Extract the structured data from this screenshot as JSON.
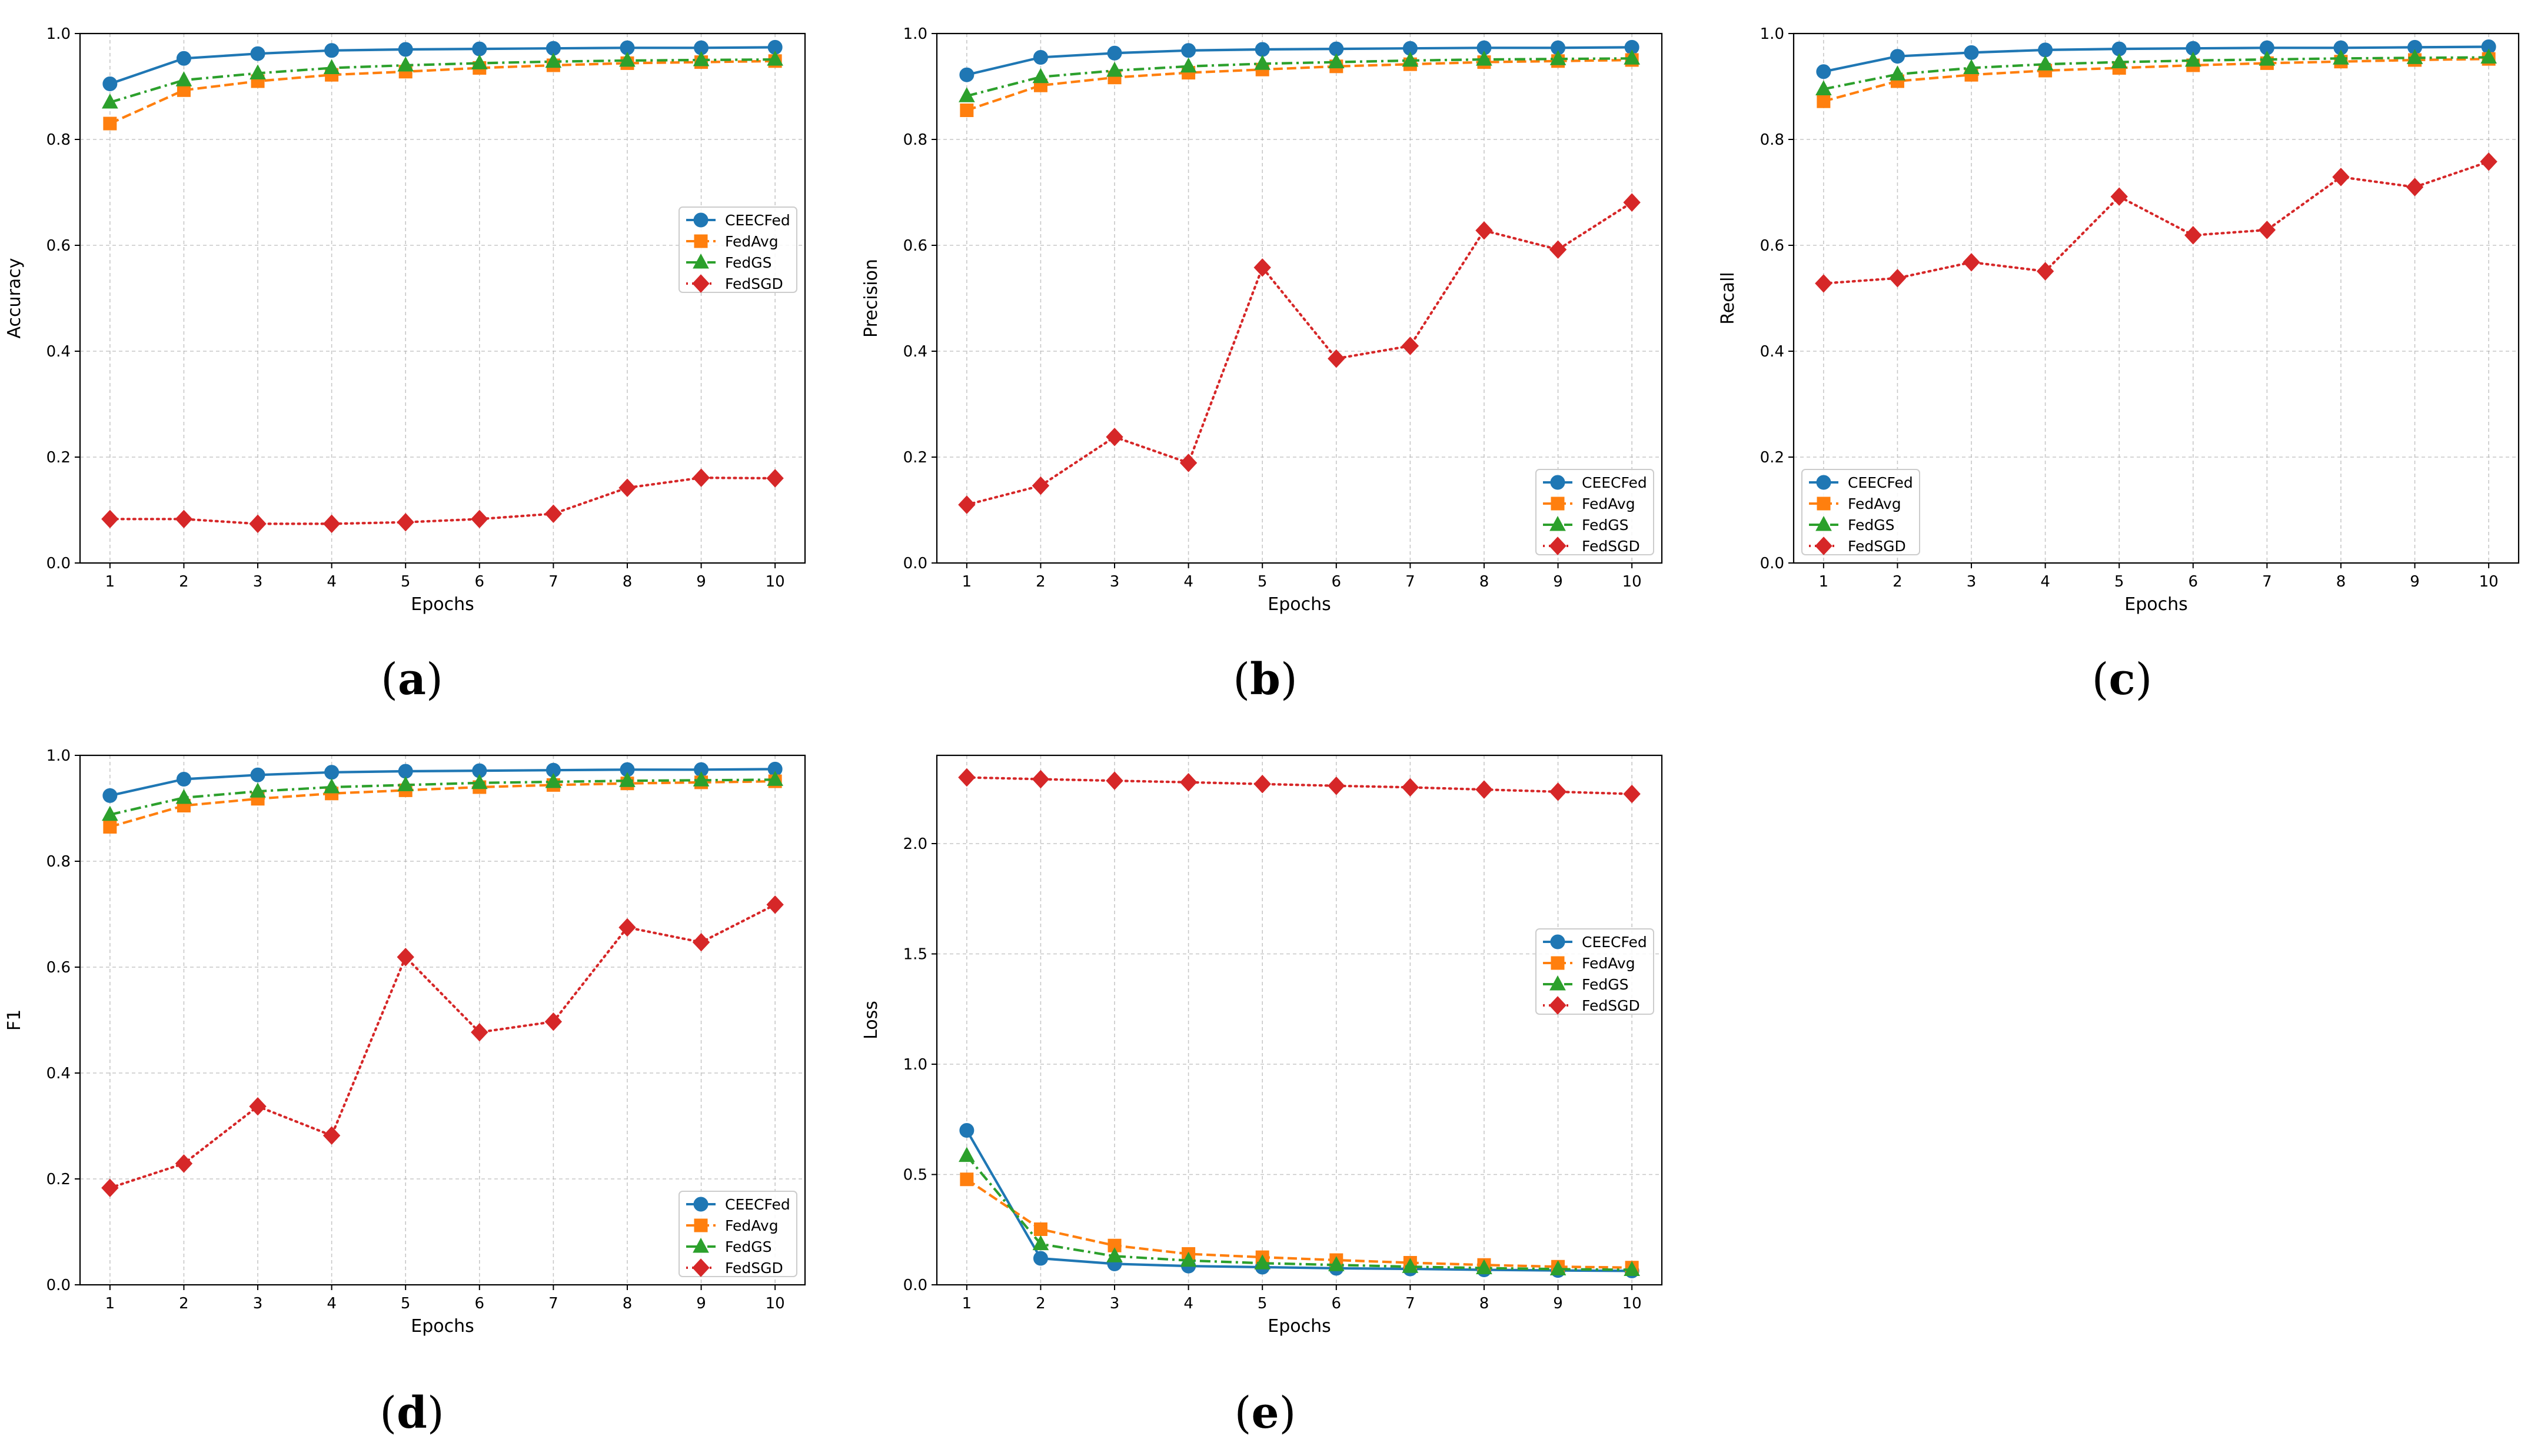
{
  "colors": {
    "CEECFed": "#1f77b4",
    "FedAvg": "#ff7f0e",
    "FedGS": "#2ca02c",
    "FedSGD": "#d62728"
  },
  "chart_data": [
    {
      "panel": "a",
      "caption_prefix": "(",
      "caption_letter": "a",
      "caption_suffix": ")",
      "type": "line",
      "title": "",
      "xlabel": "Epochs",
      "ylabel": "Accuracy",
      "x": [
        1,
        2,
        3,
        4,
        5,
        6,
        7,
        8,
        9,
        10
      ],
      "xticks": [
        "1",
        "2",
        "3",
        "4",
        "5",
        "6",
        "7",
        "8",
        "9",
        "10"
      ],
      "ylim": [
        0,
        1.0
      ],
      "yticks": [
        "0.0",
        "0.2",
        "0.4",
        "0.6",
        "0.8",
        "1.0"
      ],
      "ytick_values": [
        0,
        0.2,
        0.4,
        0.6,
        0.8,
        1.0
      ],
      "grid": true,
      "legend_position": "center-right",
      "series": [
        {
          "name": "CEECFed",
          "marker": "circle",
          "linestyle": "solid",
          "values": [
            0.905,
            0.953,
            0.962,
            0.968,
            0.97,
            0.971,
            0.972,
            0.973,
            0.973,
            0.974
          ]
        },
        {
          "name": "FedAvg",
          "marker": "square",
          "linestyle": "dashed",
          "values": [
            0.83,
            0.893,
            0.91,
            0.922,
            0.928,
            0.935,
            0.94,
            0.944,
            0.946,
            0.948
          ]
        },
        {
          "name": "FedGS",
          "marker": "triangle",
          "linestyle": "dashdot",
          "values": [
            0.87,
            0.912,
            0.925,
            0.935,
            0.94,
            0.944,
            0.947,
            0.949,
            0.95,
            0.951
          ]
        },
        {
          "name": "FedSGD",
          "marker": "diamond",
          "linestyle": "dotted",
          "values": [
            0.083,
            0.083,
            0.074,
            0.074,
            0.077,
            0.083,
            0.093,
            0.142,
            0.161,
            0.16
          ]
        }
      ]
    },
    {
      "panel": "b",
      "caption_prefix": "(",
      "caption_letter": "b",
      "caption_suffix": ")",
      "type": "line",
      "title": "",
      "xlabel": "Epochs",
      "ylabel": "Precision",
      "x": [
        1,
        2,
        3,
        4,
        5,
        6,
        7,
        8,
        9,
        10
      ],
      "xticks": [
        "1",
        "2",
        "3",
        "4",
        "5",
        "6",
        "7",
        "8",
        "9",
        "10"
      ],
      "ylim": [
        0,
        1.0
      ],
      "yticks": [
        "0.0",
        "0.2",
        "0.4",
        "0.6",
        "0.8",
        "1.0"
      ],
      "ytick_values": [
        0,
        0.2,
        0.4,
        0.6,
        0.8,
        1.0
      ],
      "grid": true,
      "legend_position": "lower-right",
      "series": [
        {
          "name": "CEECFed",
          "marker": "circle",
          "linestyle": "solid",
          "values": [
            0.922,
            0.955,
            0.963,
            0.968,
            0.97,
            0.971,
            0.972,
            0.973,
            0.973,
            0.974
          ]
        },
        {
          "name": "FedAvg",
          "marker": "square",
          "linestyle": "dashed",
          "values": [
            0.855,
            0.902,
            0.917,
            0.926,
            0.932,
            0.938,
            0.942,
            0.946,
            0.948,
            0.95
          ]
        },
        {
          "name": "FedGS",
          "marker": "triangle",
          "linestyle": "dashdot",
          "values": [
            0.882,
            0.918,
            0.93,
            0.938,
            0.943,
            0.946,
            0.949,
            0.951,
            0.952,
            0.953
          ]
        },
        {
          "name": "FedSGD",
          "marker": "diamond",
          "linestyle": "dotted",
          "values": [
            0.11,
            0.146,
            0.238,
            0.189,
            0.558,
            0.386,
            0.41,
            0.628,
            0.592,
            0.681
          ]
        }
      ]
    },
    {
      "panel": "c",
      "caption_prefix": "(",
      "caption_letter": "c",
      "caption_suffix": ")",
      "type": "line",
      "title": "",
      "xlabel": "Epochs",
      "ylabel": "Recall",
      "x": [
        1,
        2,
        3,
        4,
        5,
        6,
        7,
        8,
        9,
        10
      ],
      "xticks": [
        "1",
        "2",
        "3",
        "4",
        "5",
        "6",
        "7",
        "8",
        "9",
        "10"
      ],
      "ylim": [
        0,
        1.0
      ],
      "yticks": [
        "0.0",
        "0.2",
        "0.4",
        "0.6",
        "0.8",
        "1.0"
      ],
      "ytick_values": [
        0,
        0.2,
        0.4,
        0.6,
        0.8,
        1.0
      ],
      "grid": true,
      "legend_position": "lower-left",
      "series": [
        {
          "name": "CEECFed",
          "marker": "circle",
          "linestyle": "solid",
          "values": [
            0.928,
            0.957,
            0.964,
            0.969,
            0.971,
            0.972,
            0.973,
            0.973,
            0.974,
            0.975
          ]
        },
        {
          "name": "FedAvg",
          "marker": "square",
          "linestyle": "dashed",
          "values": [
            0.872,
            0.91,
            0.922,
            0.93,
            0.935,
            0.94,
            0.944,
            0.947,
            0.95,
            0.952
          ]
        },
        {
          "name": "FedGS",
          "marker": "triangle",
          "linestyle": "dashdot",
          "values": [
            0.895,
            0.923,
            0.935,
            0.942,
            0.946,
            0.949,
            0.951,
            0.953,
            0.954,
            0.955
          ]
        },
        {
          "name": "FedSGD",
          "marker": "diamond",
          "linestyle": "dotted",
          "values": [
            0.528,
            0.538,
            0.568,
            0.551,
            0.692,
            0.619,
            0.629,
            0.729,
            0.71,
            0.758
          ]
        }
      ]
    },
    {
      "panel": "d",
      "caption_prefix": "(",
      "caption_letter": "d",
      "caption_suffix": ")",
      "type": "line",
      "title": "",
      "xlabel": "Epochs",
      "ylabel": "F1",
      "x": [
        1,
        2,
        3,
        4,
        5,
        6,
        7,
        8,
        9,
        10
      ],
      "xticks": [
        "1",
        "2",
        "3",
        "4",
        "5",
        "6",
        "7",
        "8",
        "9",
        "10"
      ],
      "ylim": [
        0,
        1.0
      ],
      "yticks": [
        "0.0",
        "0.2",
        "0.4",
        "0.6",
        "0.8",
        "1.0"
      ],
      "ytick_values": [
        0,
        0.2,
        0.4,
        0.6,
        0.8,
        1.0
      ],
      "grid": true,
      "legend_position": "lower-right",
      "series": [
        {
          "name": "CEECFed",
          "marker": "circle",
          "linestyle": "solid",
          "values": [
            0.924,
            0.955,
            0.963,
            0.968,
            0.97,
            0.971,
            0.972,
            0.973,
            0.973,
            0.974
          ]
        },
        {
          "name": "FedAvg",
          "marker": "square",
          "linestyle": "dashed",
          "values": [
            0.865,
            0.905,
            0.918,
            0.928,
            0.934,
            0.94,
            0.944,
            0.947,
            0.949,
            0.951
          ]
        },
        {
          "name": "FedGS",
          "marker": "triangle",
          "linestyle": "dashdot",
          "values": [
            0.888,
            0.92,
            0.932,
            0.94,
            0.944,
            0.948,
            0.95,
            0.952,
            0.953,
            0.954
          ]
        },
        {
          "name": "FedSGD",
          "marker": "diamond",
          "linestyle": "dotted",
          "values": [
            0.183,
            0.229,
            0.337,
            0.282,
            0.619,
            0.477,
            0.497,
            0.675,
            0.647,
            0.718
          ]
        }
      ]
    },
    {
      "panel": "e",
      "caption_prefix": "(",
      "caption_letter": "e",
      "caption_suffix": ")",
      "type": "line",
      "title": "",
      "xlabel": "Epochs",
      "ylabel": "Loss",
      "x": [
        1,
        2,
        3,
        4,
        5,
        6,
        7,
        8,
        9,
        10
      ],
      "xticks": [
        "1",
        "2",
        "3",
        "4",
        "5",
        "6",
        "7",
        "8",
        "9",
        "10"
      ],
      "ylim": [
        0,
        2.4
      ],
      "yticks": [
        "0.0",
        "0.5",
        "1.0",
        "1.5",
        "2.0"
      ],
      "ytick_values": [
        0,
        0.5,
        1.0,
        1.5,
        2.0
      ],
      "grid": true,
      "legend_position": "center-right",
      "series": [
        {
          "name": "CEECFed",
          "marker": "circle",
          "linestyle": "solid",
          "values": [
            0.7,
            0.12,
            0.095,
            0.085,
            0.08,
            0.075,
            0.072,
            0.068,
            0.065,
            0.063
          ]
        },
        {
          "name": "FedAvg",
          "marker": "square",
          "linestyle": "dashed",
          "values": [
            0.478,
            0.252,
            0.178,
            0.14,
            0.125,
            0.112,
            0.1,
            0.09,
            0.082,
            0.078
          ]
        },
        {
          "name": "FedGS",
          "marker": "triangle",
          "linestyle": "dashdot",
          "values": [
            0.585,
            0.185,
            0.13,
            0.11,
            0.098,
            0.09,
            0.082,
            0.076,
            0.071,
            0.068
          ]
        },
        {
          "name": "FedSGD",
          "marker": "diamond",
          "linestyle": "dotted",
          "values": [
            2.3,
            2.292,
            2.285,
            2.278,
            2.27,
            2.262,
            2.255,
            2.245,
            2.235,
            2.225
          ]
        }
      ]
    }
  ]
}
